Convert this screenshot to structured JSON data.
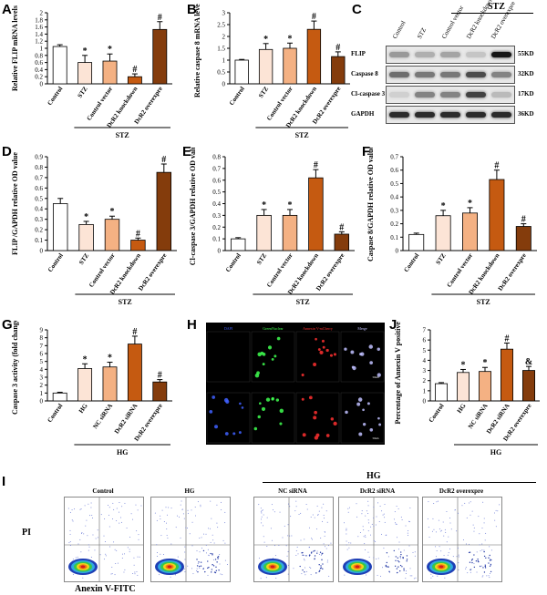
{
  "colors": {
    "control": "#ffffff",
    "stz": "#fce4d6",
    "vector": "#f4b183",
    "knockdown": "#c55a11",
    "overexpre": "#843c0c"
  },
  "panels": {
    "A": "A",
    "B": "B",
    "C": "C",
    "D": "D",
    "E": "E",
    "F": "F",
    "G": "G",
    "H": "H",
    "I": "I",
    "J": "J"
  },
  "stz_label": "STZ",
  "hg_label": "HG",
  "blot": {
    "group": "STZ",
    "lanes": [
      "Control",
      "STZ",
      "Control vector",
      "DcR2 knockdown",
      "DcR2 overexpre"
    ],
    "rows": [
      {
        "name": "FLIP",
        "size": "55KD"
      },
      {
        "name": "Caspase 8",
        "size": "32KD"
      },
      {
        "name": "Cl-caspase 3",
        "size": "17KD"
      },
      {
        "name": "GAPDH",
        "size": "36KD"
      }
    ]
  },
  "if_panel": {
    "columns": [
      "DAPI",
      "GreenNuclear",
      "Annexin V-mCherry",
      "Merge"
    ],
    "rows": [
      "DcR2 siRNA",
      "DcR2 overexpression"
    ],
    "scale": "50um"
  },
  "flow": {
    "group": "HG",
    "xlabel": "Anexin V-FITC",
    "ylabel": "PI",
    "plots": [
      "Control",
      "HG",
      "NC siRNA",
      "DcR2 siRNA",
      "DcR2 overexpre"
    ]
  },
  "chart_data": [
    {
      "id": "A",
      "type": "bar",
      "ylabel": "Relative FLIP mRNA levels",
      "categories": [
        "Control",
        "STZ",
        "Control vector",
        "DcR2 knockdown",
        "DcR2 overexpre"
      ],
      "values": [
        1.05,
        0.6,
        0.64,
        0.2,
        1.53
      ],
      "errors": [
        0.05,
        0.2,
        0.2,
        0.08,
        0.22
      ],
      "marks": [
        "",
        "*",
        "*",
        "#",
        "#"
      ],
      "ylim": [
        0,
        2
      ],
      "yticks": [
        "0",
        "0.2",
        "0.4",
        "0.6",
        "0.8",
        "1",
        "1.2",
        "1.4",
        "1.6",
        "1.8",
        "2"
      ],
      "group": {
        "label": "STZ",
        "from": 1,
        "to": 4
      }
    },
    {
      "id": "B",
      "type": "bar",
      "ylabel": "Relative caspase 8 mRNA levels",
      "categories": [
        "Control",
        "STZ",
        "Control vector",
        "DcR2 knockdown",
        "DcR2 overexpre"
      ],
      "values": [
        1.0,
        1.45,
        1.5,
        2.3,
        1.15
      ],
      "errors": [
        0.03,
        0.25,
        0.22,
        0.35,
        0.2
      ],
      "marks": [
        "",
        "*",
        "*",
        "#",
        "#"
      ],
      "ylim": [
        0,
        3
      ],
      "yticks": [
        "0",
        "0.5",
        "1",
        "1.5",
        "2",
        "2.5",
        "3"
      ],
      "group": {
        "label": "STZ",
        "from": 1,
        "to": 4
      }
    },
    {
      "id": "D",
      "type": "bar",
      "ylabel": "FLIP /GAPDH relative OD value",
      "categories": [
        "Control",
        "STZ",
        "Control vector",
        "DcR2 knockdown",
        "DcR2 overexpre"
      ],
      "values": [
        0.45,
        0.25,
        0.3,
        0.1,
        0.75
      ],
      "errors": [
        0.05,
        0.03,
        0.03,
        0.02,
        0.08
      ],
      "marks": [
        "",
        "*",
        "*",
        "#",
        "#"
      ],
      "ylim": [
        0,
        0.9
      ],
      "yticks": [
        "0",
        "0.1",
        "0.2",
        "0.3",
        "0.4",
        "0.5",
        "0.6",
        "0.7",
        "0.8",
        "0.9"
      ],
      "group": {
        "label": "STZ",
        "from": 1,
        "to": 4
      }
    },
    {
      "id": "E",
      "type": "bar",
      "ylabel": "Cl-caspase 3/GAPDH relative OD value",
      "categories": [
        "Control",
        "STZ",
        "Control vector",
        "DcR2 knockdown",
        "DcR2 overexpre"
      ],
      "values": [
        0.1,
        0.3,
        0.3,
        0.62,
        0.14
      ],
      "errors": [
        0.01,
        0.05,
        0.05,
        0.07,
        0.02
      ],
      "marks": [
        "",
        "*",
        "*",
        "#",
        "#"
      ],
      "ylim": [
        0,
        0.8
      ],
      "yticks": [
        "0",
        "0.1",
        "0.2",
        "0.3",
        "0.4",
        "0.5",
        "0.6",
        "0.7",
        "0.8"
      ],
      "group": {
        "label": "STZ",
        "from": 1,
        "to": 4
      }
    },
    {
      "id": "F",
      "type": "bar",
      "ylabel": "Caspase 8/GAPDH relative OD value",
      "categories": [
        "Control",
        "STZ",
        "Control vector",
        "DcR2 knockdown",
        "DcR2 overexpre"
      ],
      "values": [
        0.12,
        0.26,
        0.28,
        0.53,
        0.18
      ],
      "errors": [
        0.01,
        0.04,
        0.04,
        0.07,
        0.02
      ],
      "marks": [
        "",
        "*",
        "*",
        "#",
        "#"
      ],
      "ylim": [
        0,
        0.7
      ],
      "yticks": [
        "0",
        "0.1",
        "0.2",
        "0.3",
        "0.4",
        "0.5",
        "0.6",
        "0.7"
      ],
      "group": {
        "label": "STZ",
        "from": 1,
        "to": 4
      }
    },
    {
      "id": "G",
      "type": "bar",
      "ylabel": "Caspase 3 activity (fold change)",
      "categories": [
        "Control",
        "HG",
        "NC siRNA",
        "DcR2 siRNA",
        "DcR2 overexpre"
      ],
      "values": [
        1.0,
        4.1,
        4.3,
        7.2,
        2.4
      ],
      "errors": [
        0.1,
        0.6,
        0.6,
        1.0,
        0.3
      ],
      "marks": [
        "",
        "*",
        "*",
        "#",
        "#"
      ],
      "ylim": [
        0,
        9
      ],
      "yticks": [
        "0",
        "1",
        "2",
        "3",
        "4",
        "5",
        "6",
        "7",
        "8",
        "9"
      ],
      "group": {
        "label": "HG",
        "from": 1,
        "to": 4
      }
    },
    {
      "id": "J",
      "type": "bar",
      "ylabel": "Percentage of Annexin V positive cells",
      "categories": [
        "Control",
        "HG",
        "NC siRNA",
        "DcR2 siRNA",
        "DcR2 overexpre"
      ],
      "values": [
        1.7,
        2.8,
        2.9,
        5.1,
        3.0
      ],
      "errors": [
        0.1,
        0.3,
        0.4,
        0.6,
        0.4
      ],
      "marks": [
        "",
        "*",
        "*",
        "#",
        "&"
      ],
      "ylim": [
        0,
        7
      ],
      "yticks": [
        "0",
        "1",
        "2",
        "3",
        "4",
        "5",
        "6",
        "7"
      ],
      "group": {
        "label": "HG",
        "from": 1,
        "to": 4
      }
    }
  ]
}
